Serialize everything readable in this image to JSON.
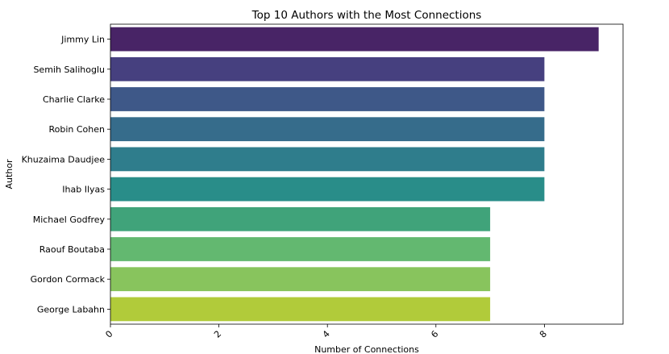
{
  "chart_data": {
    "type": "bar",
    "orientation": "horizontal",
    "title": "Top 10 Authors with the Most Connections",
    "xlabel": "Number of Connections",
    "ylabel": "Author",
    "categories": [
      "Jimmy Lin",
      "Semih Salihoglu",
      "Charlie Clarke",
      "Robin Cohen",
      "Khuzaima Daudjee",
      "Ihab Ilyas",
      "Michael Godfrey",
      "Raouf Boutaba",
      "Gordon Cormack",
      "George Labahn"
    ],
    "values": [
      9,
      8,
      8,
      8,
      8,
      8,
      7,
      7,
      7,
      7
    ],
    "xticks": [
      "0",
      "2",
      "4",
      "6",
      "8"
    ],
    "xlim": [
      0,
      9.45
    ],
    "grid": false,
    "colors": [
      "#482466",
      "#46407f",
      "#3e5888",
      "#366c8b",
      "#2f7d8c",
      "#298d89",
      "#40a37a",
      "#63b870",
      "#88c45d",
      "#b1cb3a"
    ]
  }
}
